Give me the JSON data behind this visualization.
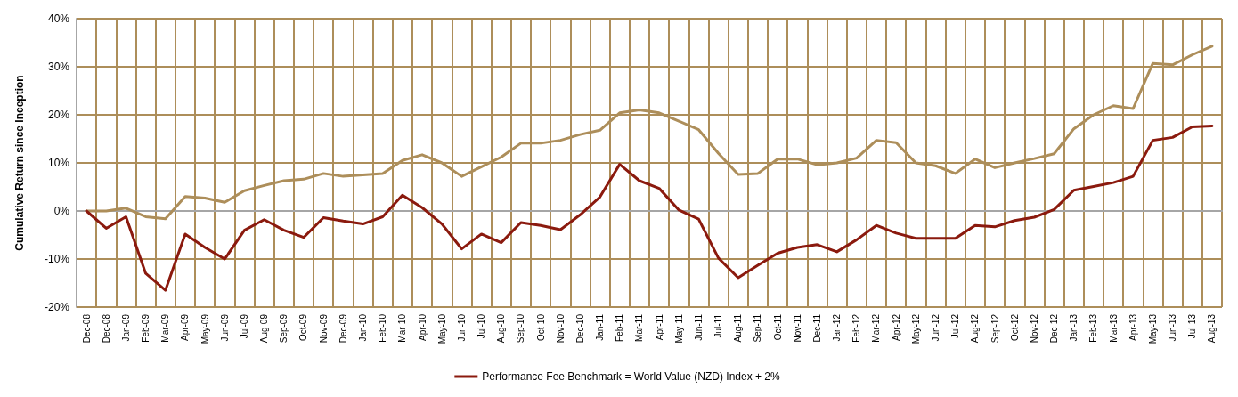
{
  "chart_data": {
    "type": "line",
    "ylabel": "Cumulative Return since Inception",
    "categories": [
      "Dec-08",
      "Dec-08",
      "Jan-09",
      "Feb-09",
      "Mar-09",
      "Apr-09",
      "May-09",
      "Jun-09",
      "Jul-09",
      "Aug-09",
      "Sep-09",
      "Oct-09",
      "Nov-09",
      "Dec-09",
      "Jan-10",
      "Feb-10",
      "Mar-10",
      "Apr-10",
      "May-10",
      "Jun-10",
      "Jul-10",
      "Aug-10",
      "Sep-10",
      "Oct-10",
      "Nov-10",
      "Dec-10",
      "Jan-11",
      "Feb-11",
      "Mar-11",
      "Apr-11",
      "May-11",
      "Jun-11",
      "Jul-11",
      "Aug-11",
      "Sep-11",
      "Oct-11",
      "Nov-11",
      "Dec-11",
      "Jan-12",
      "Feb-12",
      "Mar-12",
      "Apr-12",
      "May-12",
      "Jun-12",
      "Jul-12",
      "Aug-12",
      "Sep-12",
      "Oct-12",
      "Nov-12",
      "Dec-12",
      "Jan-13",
      "Feb-13",
      "Mar-13",
      "Apr-13",
      "May-13",
      "Jun-13",
      "Jul-13",
      "Aug-13"
    ],
    "series": [
      {
        "color": "#ad8e5a",
        "values": [
          0,
          0,
          0.6,
          -1.2,
          -1.6,
          3.0,
          2.7,
          1.8,
          4.2,
          5.3,
          6.3,
          6.6,
          7.8,
          7.2,
          7.5,
          7.8,
          10.5,
          11.7,
          10.0,
          7.2,
          9.2,
          11.2,
          14.1,
          14.1,
          14.7,
          15.9,
          16.8,
          20.4,
          21.0,
          20.4,
          18.7,
          16.9,
          12.0,
          7.6,
          7.8,
          10.8,
          10.8,
          9.6,
          10.0,
          11.0,
          14.7,
          14.2,
          10.0,
          9.4,
          7.8,
          10.8,
          9.0,
          10.0,
          10.9,
          11.9,
          17.1,
          20.0,
          21.9,
          21.3,
          30.7,
          30.4,
          32.5,
          34.3
        ]
      },
      {
        "name": "Performance Fee Benchmark = World Value (NZD) Index + 2%",
        "color": "#8b1a0e",
        "values": [
          0,
          -3.6,
          -1.2,
          -13.0,
          -16.5,
          -4.8,
          -7.6,
          -10.0,
          -4.0,
          -1.8,
          -4.0,
          -5.5,
          -1.4,
          -2.1,
          -2.7,
          -1.2,
          3.3,
          0.7,
          -2.7,
          -7.9,
          -4.8,
          -6.6,
          -2.4,
          -3.0,
          -3.9,
          -0.8,
          2.9,
          9.7,
          6.3,
          4.7,
          0.2,
          -1.7,
          -9.8,
          -13.9,
          -11.3,
          -8.8,
          -7.6,
          -7.0,
          -8.5,
          -6.0,
          -3.0,
          -4.6,
          -5.7,
          -5.7,
          -5.7,
          -3.0,
          -3.3,
          -2.0,
          -1.3,
          0.3,
          4.3,
          5.1,
          5.9,
          7.2,
          14.7,
          15.3,
          17.5,
          17.7
        ]
      }
    ],
    "ylim": [
      -20,
      40
    ],
    "yticks": [
      {
        "value": -20,
        "label": "-20%"
      },
      {
        "value": -10,
        "label": "-10%"
      },
      {
        "value": 0,
        "label": "0%"
      },
      {
        "value": 10,
        "label": "10%"
      },
      {
        "value": 20,
        "label": "20%"
      },
      {
        "value": 30,
        "label": "30%"
      },
      {
        "value": 40,
        "label": "40%"
      }
    ],
    "grid": true,
    "legend": "bottom",
    "marker": "none",
    "line_style": "solid"
  }
}
